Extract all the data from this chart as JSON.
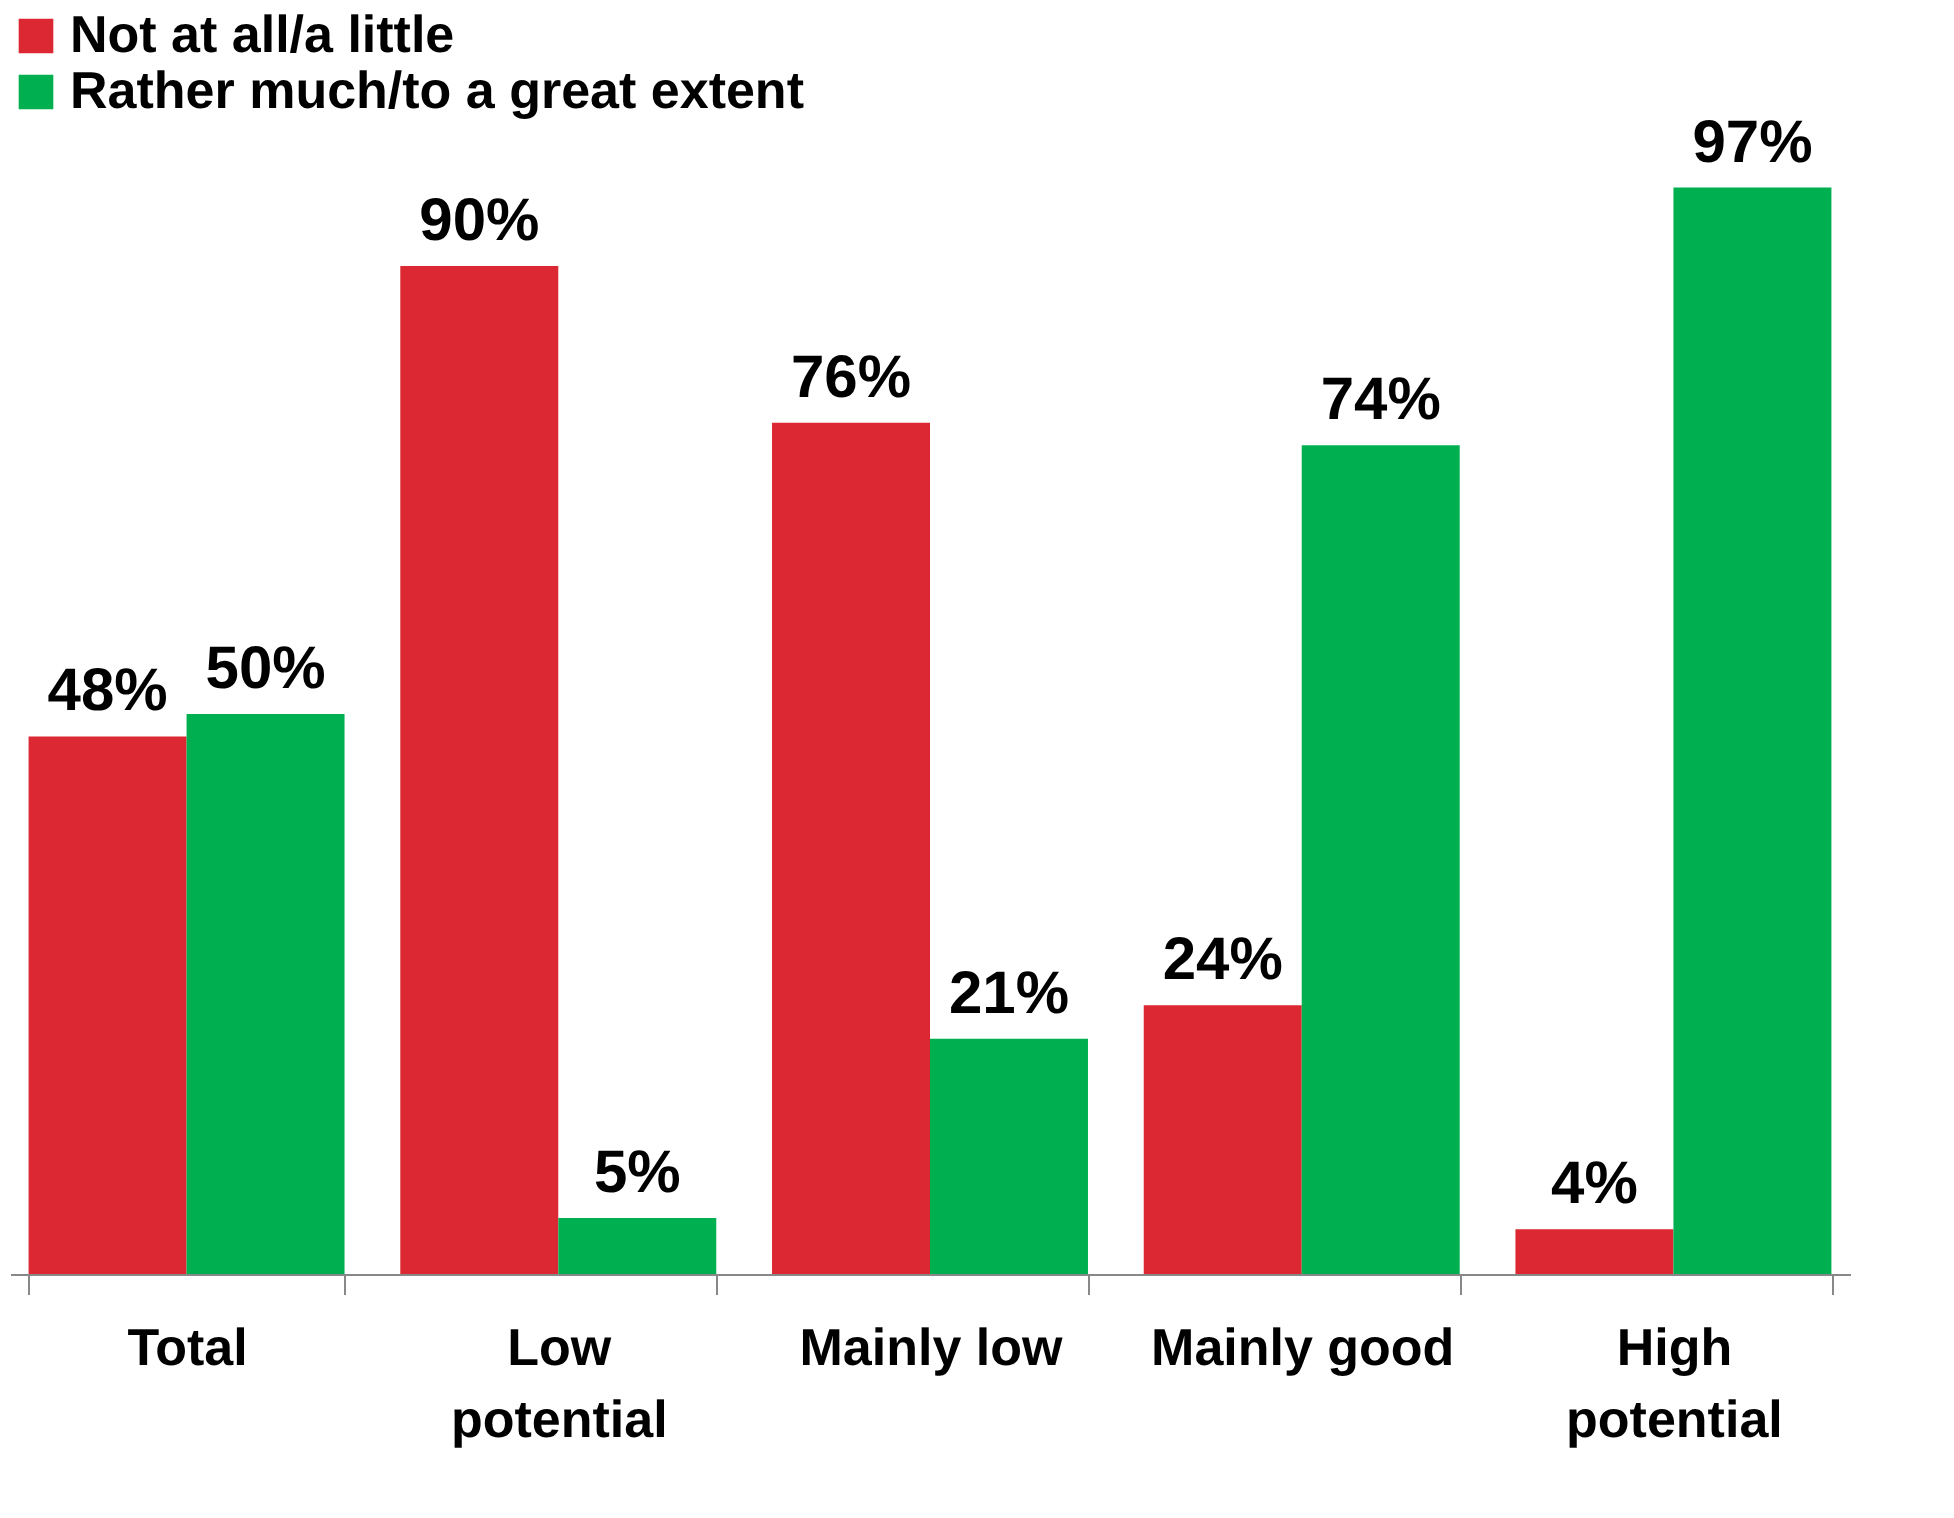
{
  "chart_data": {
    "type": "bar",
    "categories": [
      "Total",
      "Low potential",
      "Mainly low",
      "Mainly good",
      "High potential"
    ],
    "series": [
      {
        "name": "Not at all/a little",
        "color": "#dc2832",
        "values": [
          48,
          90,
          76,
          24,
          4
        ],
        "value_labels": [
          "48%",
          "90%",
          "76%",
          "24%",
          "4%"
        ]
      },
      {
        "name": "Rather much/to a great extent",
        "color": "#00b050",
        "values": [
          50,
          5,
          21,
          74,
          97
        ],
        "value_labels": [
          "50%",
          "5%",
          "21%",
          "74%",
          "97%"
        ]
      }
    ],
    "legend": "top",
    "grid": false
  }
}
